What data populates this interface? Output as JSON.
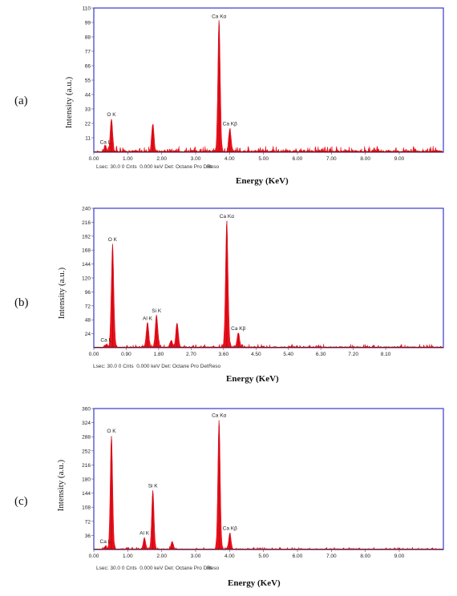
{
  "colors": {
    "frame": "#3a3acc",
    "spectrum": "#e8101a",
    "baseline": "#6a1a1a",
    "text": "#222222"
  },
  "chart_data": [
    {
      "panel_label": "(a)",
      "type": "area",
      "ylabel": "Intensity (a.u.)",
      "xlabel": "Energy (KeV)",
      "footer": {
        "lsec": "Lsec: 30.0 0 Cnts  0.000 keV Det: Octane Pro Det",
        "reso": "Reso"
      },
      "xlim": [
        0,
        10.3
      ],
      "ylim": [
        0,
        110
      ],
      "xticks": [
        0.0,
        1.0,
        2.0,
        3.0,
        4.0,
        5.0,
        6.0,
        7.0,
        8.0,
        9.0
      ],
      "xtick_labels": [
        "0.00",
        "1.00",
        "2.00",
        "3.00",
        "4.00",
        "5.00",
        "6.00",
        "7.00",
        "8.00",
        "9.00"
      ],
      "yticks": [
        11,
        22,
        33,
        44,
        55,
        66,
        77,
        88,
        99,
        110
      ],
      "ytick_labels": [
        "11",
        "22",
        "33",
        "44",
        "55",
        "66",
        "77",
        "88",
        "99",
        "110"
      ],
      "peaks": [
        {
          "x": 0.34,
          "y": 4
        },
        {
          "x": 0.52,
          "y": 25
        },
        {
          "x": 1.74,
          "y": 21
        },
        {
          "x": 3.69,
          "y": 100
        },
        {
          "x": 4.01,
          "y": 18
        }
      ],
      "noise_level": 3,
      "annotations": [
        {
          "text": "Ca L",
          "x": 0.34,
          "y": 4
        },
        {
          "text": "O  K",
          "x": 0.52,
          "y": 25
        },
        {
          "text": "Ca Kα",
          "x": 3.69,
          "y": 100
        },
        {
          "text": "Ca Kβ",
          "x": 4.01,
          "y": 18
        }
      ]
    },
    {
      "panel_label": "(b)",
      "type": "area",
      "ylabel": "Intensity (a.u.)",
      "xlabel": "Energy (KeV)",
      "footer": {
        "lsec": "Lsec: 30.0 0 Cnts  0.000 keV Det: Octane Pro Det",
        "reso": "Reso"
      },
      "xlim": [
        0,
        9.7
      ],
      "ylim": [
        0,
        240
      ],
      "xticks": [
        0.0,
        0.9,
        1.8,
        2.7,
        3.6,
        4.5,
        5.4,
        6.3,
        7.2,
        8.1
      ],
      "xtick_labels": [
        "0.00",
        "0.90",
        "1.80",
        "2.70",
        "3.60",
        "4.50",
        "5.40",
        "6.30",
        "7.20",
        "8.10"
      ],
      "yticks": [
        24,
        48,
        72,
        96,
        120,
        144,
        168,
        192,
        216,
        240
      ],
      "ytick_labels": [
        "24",
        "48",
        "72",
        "96",
        "120",
        "144",
        "168",
        "192",
        "216",
        "240"
      ],
      "peaks": [
        {
          "x": 0.34,
          "y": 5
        },
        {
          "x": 0.52,
          "y": 178
        },
        {
          "x": 1.49,
          "y": 42
        },
        {
          "x": 1.74,
          "y": 55
        },
        {
          "x": 2.31,
          "y": 42
        },
        {
          "x": 2.15,
          "y": 12
        },
        {
          "x": 3.69,
          "y": 218
        },
        {
          "x": 4.01,
          "y": 25
        }
      ],
      "noise_level": 4,
      "annotations": [
        {
          "text": "Ca L",
          "x": 0.34,
          "y": 5
        },
        {
          "text": "O  K",
          "x": 0.52,
          "y": 178
        },
        {
          "text": "Al K",
          "x": 1.49,
          "y": 42
        },
        {
          "text": "Si K",
          "x": 1.74,
          "y": 55
        },
        {
          "text": "Ca Kα",
          "x": 3.69,
          "y": 218
        },
        {
          "text": "Ca Kβ",
          "x": 4.01,
          "y": 25
        }
      ]
    },
    {
      "panel_label": "(c)",
      "type": "area",
      "ylabel": "Intensity (a.u.)",
      "xlabel": "Energy (KeV)",
      "footer": {
        "lsec": "Lsec: 30.0 0 Cnts  0.000 keV Det: Octane Pro Det",
        "reso": "Reso"
      },
      "xlim": [
        0,
        10.3
      ],
      "ylim": [
        0,
        360
      ],
      "xticks": [
        0.0,
        1.0,
        2.0,
        3.0,
        4.0,
        5.0,
        6.0,
        7.0,
        8.0,
        9.0
      ],
      "xtick_labels": [
        "0.00",
        "1.00",
        "2.00",
        "3.00",
        "4.00",
        "5.00",
        "6.00",
        "7.00",
        "8.00",
        "9.00"
      ],
      "yticks": [
        36,
        72,
        108,
        144,
        180,
        216,
        252,
        288,
        324,
        360
      ],
      "ytick_labels": [
        "36",
        "72",
        "108",
        "144",
        "180",
        "216",
        "252",
        "288",
        "324",
        "360"
      ],
      "peaks": [
        {
          "x": 0.34,
          "y": 8
        },
        {
          "x": 0.52,
          "y": 290
        },
        {
          "x": 1.49,
          "y": 30
        },
        {
          "x": 1.74,
          "y": 150
        },
        {
          "x": 2.31,
          "y": 20
        },
        {
          "x": 3.69,
          "y": 330
        },
        {
          "x": 4.01,
          "y": 42
        }
      ],
      "noise_level": 4,
      "annotations": [
        {
          "text": "Ca L",
          "x": 0.34,
          "y": 8
        },
        {
          "text": "O  K",
          "x": 0.52,
          "y": 290
        },
        {
          "text": "Al K",
          "x": 1.49,
          "y": 30
        },
        {
          "text": "Si K",
          "x": 1.74,
          "y": 150
        },
        {
          "text": "Ca Kα",
          "x": 3.69,
          "y": 330
        },
        {
          "text": "Ca Kβ",
          "x": 4.01,
          "y": 42
        }
      ]
    }
  ]
}
